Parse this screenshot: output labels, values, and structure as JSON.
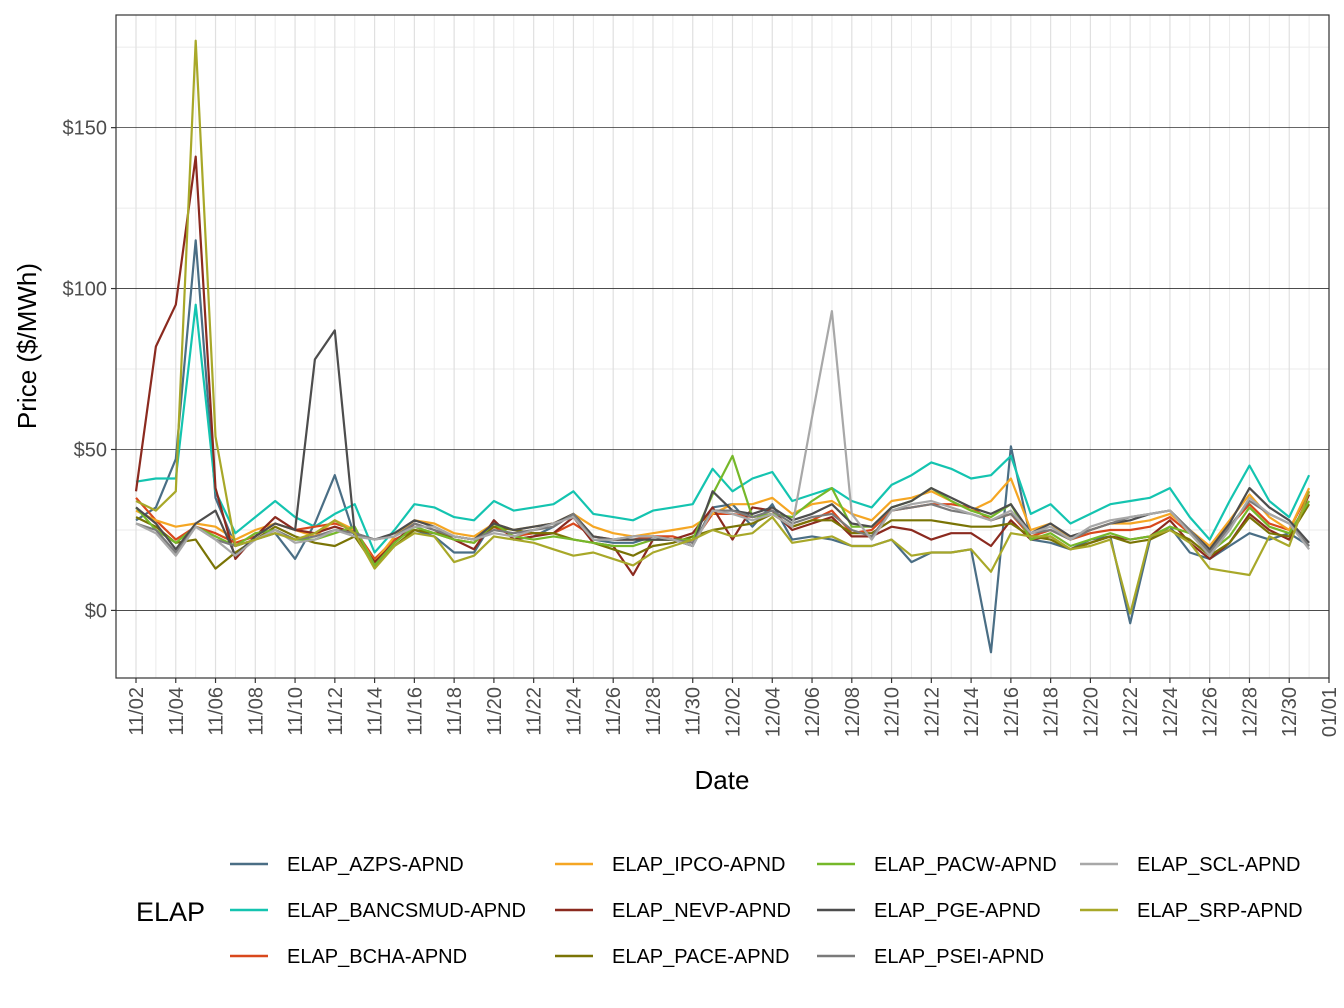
{
  "chart_data": {
    "type": "line",
    "xlabel": "Date",
    "ylabel": "Price ($/MWh)",
    "xlim": [
      "2021-11-02",
      "2022-01-01"
    ],
    "ylim": [
      -21,
      185
    ],
    "y_ticks": [
      0,
      50,
      100,
      150
    ],
    "y_tick_labels": [
      "$0",
      "$50",
      "$100",
      "$150"
    ],
    "x_tick_labels": [
      "11/02",
      "11/04",
      "11/06",
      "11/08",
      "11/10",
      "11/12",
      "11/14",
      "11/16",
      "11/18",
      "11/20",
      "11/22",
      "11/24",
      "11/26",
      "11/28",
      "11/30",
      "12/02",
      "12/04",
      "12/06",
      "12/08",
      "12/10",
      "12/12",
      "12/14",
      "12/16",
      "12/18",
      "12/20",
      "12/22",
      "12/24",
      "12/26",
      "12/28",
      "12/30",
      "01/01"
    ],
    "x_tick_dates": [
      "2021-11-02",
      "2021-11-04",
      "2021-11-06",
      "2021-11-08",
      "2021-11-10",
      "2021-11-12",
      "2021-11-14",
      "2021-11-16",
      "2021-11-18",
      "2021-11-20",
      "2021-11-22",
      "2021-11-24",
      "2021-11-26",
      "2021-11-28",
      "2021-11-30",
      "2021-12-02",
      "2021-12-04",
      "2021-12-06",
      "2021-12-08",
      "2021-12-10",
      "2021-12-12",
      "2021-12-14",
      "2021-12-16",
      "2021-12-18",
      "2021-12-20",
      "2021-12-22",
      "2021-12-24",
      "2021-12-26",
      "2021-12-28",
      "2021-12-30",
      "2022-01-01"
    ],
    "grid": true,
    "legend_title": "ELAP",
    "legend_position": "bottom",
    "x_dates": [
      "2021-11-02",
      "2021-11-03",
      "2021-11-04",
      "2021-11-05",
      "2021-11-06",
      "2021-11-07",
      "2021-11-08",
      "2021-11-09",
      "2021-11-10",
      "2021-11-11",
      "2021-11-12",
      "2021-11-13",
      "2021-11-14",
      "2021-11-15",
      "2021-11-16",
      "2021-11-17",
      "2021-11-18",
      "2021-11-19",
      "2021-11-20",
      "2021-11-21",
      "2021-11-22",
      "2021-11-23",
      "2021-11-24",
      "2021-11-25",
      "2021-11-26",
      "2021-11-27",
      "2021-11-28",
      "2021-11-29",
      "2021-11-30",
      "2021-12-01",
      "2021-12-02",
      "2021-12-03",
      "2021-12-04",
      "2021-12-05",
      "2021-12-06",
      "2021-12-07",
      "2021-12-08",
      "2021-12-09",
      "2021-12-10",
      "2021-12-11",
      "2021-12-12",
      "2021-12-13",
      "2021-12-14",
      "2021-12-15",
      "2021-12-16",
      "2021-12-17",
      "2021-12-18",
      "2021-12-19",
      "2021-12-20",
      "2021-12-21",
      "2021-12-22",
      "2021-12-23",
      "2021-12-24",
      "2021-12-25",
      "2021-12-26",
      "2021-12-27",
      "2021-12-28",
      "2021-12-29",
      "2021-12-30",
      "2021-12-31"
    ],
    "series": [
      {
        "name": "ELAP_AZPS-APND",
        "color": "#4a6e85",
        "values": [
          28,
          32,
          47,
          115,
          35,
          20,
          22,
          24,
          16,
          27,
          42,
          23,
          15,
          22,
          25,
          23,
          18,
          18,
          28,
          22,
          23,
          26,
          30,
          22,
          21,
          21,
          23,
          22,
          20,
          32,
          33,
          26,
          33,
          22,
          23,
          22,
          20,
          20,
          22,
          15,
          18,
          18,
          19,
          -13,
          51,
          22,
          21,
          19,
          22,
          23,
          -4,
          22,
          26,
          18,
          16,
          20,
          24,
          22,
          24,
          20
        ]
      },
      {
        "name": "ELAP_BANCSMUD-APND",
        "color": "#14c4b0",
        "values": [
          40,
          41,
          41,
          95,
          37,
          24,
          29,
          34,
          29,
          26,
          30,
          33,
          18,
          25,
          33,
          32,
          29,
          28,
          34,
          31,
          32,
          33,
          37,
          30,
          29,
          28,
          31,
          32,
          33,
          44,
          37,
          41,
          43,
          34,
          36,
          38,
          34,
          32,
          39,
          42,
          46,
          44,
          41,
          42,
          48,
          30,
          33,
          27,
          30,
          33,
          34,
          35,
          38,
          29,
          22,
          34,
          45,
          34,
          29,
          42
        ]
      },
      {
        "name": "ELAP_BCHA-APND",
        "color": "#d9481c",
        "values": [
          35,
          28,
          22,
          26,
          24,
          21,
          23,
          27,
          25,
          26,
          27,
          25,
          16,
          22,
          25,
          24,
          22,
          21,
          26,
          23,
          24,
          24,
          27,
          23,
          22,
          22,
          23,
          23,
          21,
          30,
          30,
          29,
          30,
          26,
          28,
          31,
          24,
          25,
          31,
          32,
          33,
          33,
          32,
          28,
          30,
          23,
          25,
          22,
          24,
          25,
          25,
          26,
          29,
          24,
          19,
          26,
          33,
          27,
          25,
          37
        ]
      },
      {
        "name": "ELAP_IPCO-APND",
        "color": "#f5a623",
        "values": [
          31,
          28,
          26,
          27,
          26,
          22,
          25,
          27,
          25,
          23,
          28,
          25,
          15,
          23,
          28,
          27,
          24,
          23,
          27,
          25,
          26,
          27,
          30,
          26,
          24,
          23,
          24,
          25,
          26,
          30,
          33,
          33,
          35,
          30,
          33,
          34,
          30,
          28,
          34,
          35,
          37,
          34,
          31,
          34,
          41,
          25,
          27,
          22,
          25,
          27,
          27,
          28,
          30,
          25,
          20,
          28,
          36,
          29,
          25,
          38
        ]
      },
      {
        "name": "ELAP_NEVP-APND",
        "color": "#8b2a1f",
        "values": [
          37,
          82,
          95,
          141,
          38,
          16,
          23,
          29,
          25,
          24,
          26,
          24,
          15,
          21,
          27,
          25,
          22,
          19,
          28,
          22,
          23,
          24,
          29,
          21,
          20,
          11,
          22,
          22,
          24,
          32,
          22,
          32,
          31,
          25,
          27,
          29,
          23,
          23,
          26,
          25,
          22,
          24,
          24,
          20,
          28,
          22,
          23,
          19,
          21,
          23,
          22,
          23,
          28,
          21,
          16,
          21,
          30,
          25,
          22,
          36
        ]
      },
      {
        "name": "ELAP_PACE-APND",
        "color": "#7a7405",
        "values": [
          29,
          26,
          21,
          22,
          13,
          18,
          22,
          26,
          23,
          21,
          20,
          23,
          14,
          20,
          25,
          24,
          23,
          22,
          26,
          25,
          24,
          24,
          22,
          21,
          19,
          17,
          20,
          21,
          23,
          25,
          26,
          27,
          30,
          26,
          28,
          28,
          24,
          24,
          28,
          28,
          28,
          27,
          26,
          26,
          27,
          23,
          22,
          19,
          21,
          23,
          21,
          22,
          25,
          22,
          17,
          21,
          29,
          24,
          23,
          33
        ]
      },
      {
        "name": "ELAP_PACW-APND",
        "color": "#76b82a",
        "values": [
          32,
          25,
          21,
          26,
          23,
          20,
          24,
          25,
          22,
          22,
          24,
          26,
          14,
          21,
          26,
          24,
          22,
          21,
          27,
          23,
          22,
          23,
          22,
          21,
          20,
          20,
          22,
          22,
          22,
          36,
          48,
          29,
          30,
          29,
          34,
          38,
          26,
          26,
          32,
          34,
          38,
          34,
          31,
          29,
          33,
          22,
          24,
          20,
          22,
          24,
          22,
          23,
          26,
          24,
          18,
          23,
          32,
          26,
          24,
          34
        ]
      },
      {
        "name": "ELAP_PGE-APND",
        "color": "#4d4d4d",
        "values": [
          32,
          27,
          19,
          27,
          31,
          17,
          23,
          27,
          25,
          78,
          87,
          24,
          22,
          24,
          28,
          26,
          23,
          22,
          27,
          25,
          26,
          27,
          30,
          23,
          22,
          22,
          22,
          22,
          20,
          37,
          31,
          30,
          32,
          28,
          30,
          33,
          27,
          26,
          32,
          34,
          38,
          35,
          32,
          30,
          33,
          24,
          27,
          23,
          25,
          27,
          28,
          30,
          31,
          25,
          19,
          27,
          38,
          32,
          28,
          21
        ]
      },
      {
        "name": "ELAP_PSEI-APND",
        "color": "#7a7a7a",
        "values": [
          27,
          25,
          18,
          26,
          22,
          20,
          22,
          25,
          22,
          23,
          25,
          24,
          22,
          23,
          27,
          25,
          23,
          22,
          25,
          24,
          25,
          26,
          30,
          22,
          22,
          23,
          23,
          22,
          21,
          31,
          31,
          29,
          31,
          27,
          29,
          30,
          25,
          23,
          31,
          32,
          33,
          31,
          30,
          28,
          30,
          24,
          25,
          22,
          25,
          27,
          29,
          30,
          31,
          25,
          18,
          26,
          34,
          30,
          27,
          20
        ]
      },
      {
        "name": "ELAP_SCL-APND",
        "color": "#a8a8a8",
        "values": [
          27,
          24,
          17,
          26,
          22,
          17,
          22,
          25,
          21,
          22,
          25,
          23,
          22,
          23,
          26,
          26,
          23,
          22,
          24,
          23,
          25,
          27,
          29,
          22,
          22,
          23,
          23,
          22,
          20,
          31,
          30,
          28,
          30,
          26,
          60,
          93,
          30,
          22,
          31,
          33,
          34,
          32,
          30,
          28,
          31,
          24,
          26,
          22,
          26,
          28,
          29,
          30,
          31,
          24,
          17,
          25,
          35,
          30,
          27,
          19
        ]
      },
      {
        "name": "ELAP_SRP-APND",
        "color": "#a8a829",
        "values": [
          34,
          31,
          37,
          177,
          54,
          20,
          22,
          24,
          22,
          24,
          28,
          24,
          13,
          20,
          24,
          23,
          15,
          17,
          23,
          22,
          21,
          19,
          17,
          18,
          16,
          14,
          18,
          20,
          22,
          25,
          23,
          24,
          29,
          21,
          22,
          23,
          20,
          20,
          22,
          17,
          18,
          18,
          19,
          12,
          24,
          23,
          23,
          19,
          20,
          22,
          -1,
          23,
          25,
          21,
          13,
          12,
          11,
          23,
          20,
          37
        ]
      }
    ]
  }
}
